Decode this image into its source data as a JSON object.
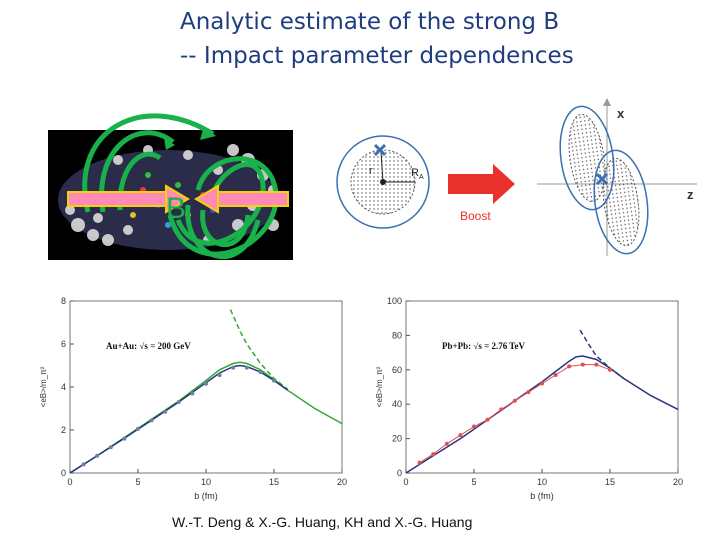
{
  "slide": {
    "title_line1": "Analytic estimate of the strong B",
    "title_line2": "-- Impact parameter dependences",
    "credit": "W.-T. Deng & X.-G. Huang, KH and X.-G. Huang"
  },
  "collision_figure": {
    "field_label": "B",
    "colors": {
      "field_lines": "#19b24a",
      "arrows_fill": "#ff8ab8",
      "arrows_edge": "#f2d400"
    }
  },
  "schematic": {
    "radius_label": "r",
    "nucleus_radius_label": "R",
    "nucleus_radius_subscript": "A",
    "boost_label": "Boost",
    "axis_x_label": "x",
    "axis_z_label": "z",
    "colors": {
      "boost_arrow": "#e8312a",
      "circle": "#3a6fb0",
      "marker": "#3a6fb0"
    }
  },
  "chart_data": [
    {
      "type": "line",
      "legend": "Au+Au: √s = 200 GeV",
      "xlabel": "b (fm)",
      "ylabel": "<eB>/m_π²",
      "xlim": [
        0,
        20
      ],
      "ylim": [
        0,
        8
      ],
      "xticks": [
        "0",
        "5",
        "10",
        "15",
        "20"
      ],
      "yticks": [
        "0",
        "2",
        "4",
        "6",
        "8"
      ],
      "series": [
        {
          "style": "solid",
          "color": "#32a832",
          "x": [
            0,
            2,
            4,
            6,
            8,
            10,
            11,
            12,
            12.5,
            13,
            14,
            15,
            16,
            18,
            20
          ],
          "y": [
            0,
            0.8,
            1.65,
            2.5,
            3.35,
            4.3,
            4.8,
            5.1,
            5.15,
            5.1,
            4.8,
            4.35,
            3.85,
            3.0,
            2.3
          ]
        },
        {
          "style": "dashed",
          "color": "#32a832",
          "x": [
            11.8,
            12.5,
            13,
            14,
            15,
            16
          ],
          "y": [
            7.6,
            6.6,
            6.0,
            5.1,
            4.4,
            3.9
          ]
        },
        {
          "style": "solid",
          "color": "#2a3580",
          "x": [
            0,
            2,
            4,
            6,
            8,
            10,
            11,
            12,
            12.5,
            13,
            14,
            15,
            16
          ],
          "y": [
            0,
            0.8,
            1.62,
            2.45,
            3.3,
            4.2,
            4.65,
            4.95,
            5.0,
            4.95,
            4.7,
            4.3,
            3.85
          ]
        },
        {
          "style": "markers",
          "color": "#6e7fa0",
          "x": [
            1,
            2,
            3,
            4,
            5,
            6,
            7,
            8,
            9,
            10,
            11,
            12,
            13,
            14,
            15
          ],
          "y": [
            0.4,
            0.8,
            1.2,
            1.6,
            2.05,
            2.45,
            2.85,
            3.3,
            3.7,
            4.15,
            4.55,
            4.9,
            4.9,
            4.7,
            4.3
          ]
        }
      ]
    },
    {
      "type": "line",
      "legend": "Pb+Pb: √s = 2.76 TeV",
      "xlabel": "b (fm)",
      "ylabel": "<eB>/m_π²",
      "xlim": [
        0,
        20
      ],
      "ylim": [
        0,
        100
      ],
      "xticks": [
        "0",
        "5",
        "10",
        "15",
        "20"
      ],
      "yticks": [
        "0",
        "20",
        "40",
        "60",
        "80",
        "100"
      ],
      "series": [
        {
          "style": "solid",
          "color": "#2a3580",
          "x": [
            0,
            2,
            4,
            6,
            8,
            10,
            11,
            12,
            12.5,
            13,
            14,
            15,
            16,
            18,
            20
          ],
          "y": [
            0,
            10,
            20,
            31,
            42,
            53,
            59,
            65,
            67.5,
            68,
            66,
            61,
            55,
            45,
            37
          ]
        },
        {
          "style": "dashed",
          "color": "#2a3580",
          "x": [
            12.8,
            13.5,
            14,
            15,
            16
          ],
          "y": [
            83,
            74,
            68,
            61,
            55
          ]
        },
        {
          "style": "markers-line",
          "color": "#e05050",
          "x": [
            1,
            2,
            3,
            4,
            5,
            6,
            7,
            8,
            9,
            10,
            11,
            12,
            13,
            14,
            15
          ],
          "y": [
            6,
            11,
            17,
            22,
            27,
            31,
            37,
            42,
            47,
            52,
            57,
            62,
            63,
            63,
            60
          ]
        }
      ]
    }
  ]
}
